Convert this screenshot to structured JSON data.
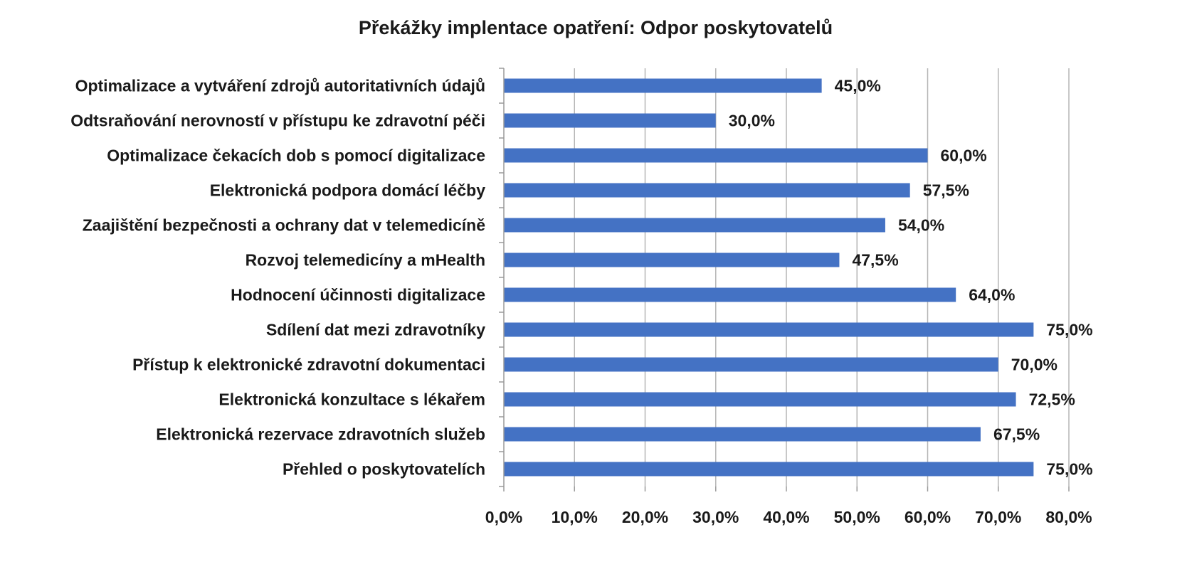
{
  "chart_data": {
    "type": "bar",
    "orientation": "horizontal",
    "title": "Překážky implentace opatření: Odpor poskytovatelů",
    "categories": [
      "Optimalizace a vytváření zdrojů autoritativních údajů",
      "Odtsraňování nerovností v přístupu ke zdravotní péči",
      "Optimalizace čekacích dob s pomocí digitalizace",
      "Elektronická podpora domácí léčby",
      "Zaajištění bezpečnosti a ochrany dat v telemedicíně",
      "Rozvoj telemedicíny a mHealth",
      "Hodnocení účinnosti digitalizace",
      "Sdílení dat mezi zdravotníky",
      "Přístup k elektronické zdravotní dokumentaci",
      "Elektronická konzultace s lékařem",
      "Elektronická rezervace zdravotních služeb",
      "Přehled o poskytovatelích"
    ],
    "values": [
      45.0,
      30.0,
      60.0,
      57.5,
      54.0,
      47.5,
      64.0,
      75.0,
      70.0,
      72.5,
      67.5,
      75.0
    ],
    "value_labels": [
      "45,0%",
      "30,0%",
      "60,0%",
      "57,5%",
      "54,0%",
      "47,5%",
      "64,0%",
      "75,0%",
      "70,0%",
      "72,5%",
      "67,5%",
      "75,0%"
    ],
    "xlim": [
      0,
      80
    ],
    "x_ticks": [
      0,
      10,
      20,
      30,
      40,
      50,
      60,
      70,
      80
    ],
    "x_tick_labels": [
      "0,0%",
      "10,0%",
      "20,0%",
      "30,0%",
      "40,0%",
      "50,0%",
      "60,0%",
      "70,0%",
      "80,0%"
    ],
    "grid": true,
    "legend": "none",
    "bar_color": "#4472C4"
  }
}
